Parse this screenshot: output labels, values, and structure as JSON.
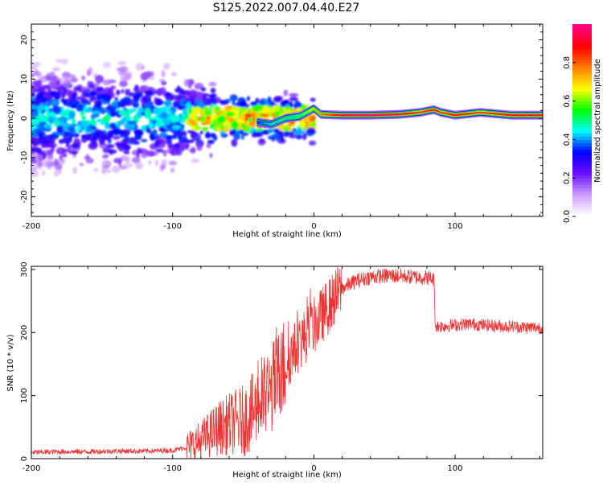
{
  "page": {
    "title": "S125.2022.007.04.40.E27"
  },
  "chart_data": [
    {
      "type": "heatmap",
      "xlabel": "Height of straight line (km)",
      "ylabel": "Frequency (Hz)",
      "xlim": [
        -200,
        162
      ],
      "ylim": [
        -25,
        24
      ],
      "xticks": [
        -200,
        -100,
        0,
        100
      ],
      "yticks": [
        -20,
        -10,
        0,
        10,
        20
      ],
      "colorbar": {
        "label": "Normalized spectral amplitude",
        "range": [
          0,
          1
        ],
        "ticks": [
          "0.0",
          "0.2",
          "0.4",
          "0.6",
          "0.8"
        ],
        "colors": [
          "#ffffff",
          "#cc99ff",
          "#6a0dff",
          "#0000ff",
          "#00ffff",
          "#00ff00",
          "#ffff00",
          "#ff8000",
          "#ff0000",
          "#ff0080"
        ]
      },
      "ridge": [
        {
          "x": -40,
          "y": -1.0,
          "amp": 0.35
        },
        {
          "x": -30,
          "y": -1.5,
          "amp": 0.45
        },
        {
          "x": -20,
          "y": 0.0,
          "amp": 0.5
        },
        {
          "x": -10,
          "y": 0.5,
          "amp": 0.55
        },
        {
          "x": 0,
          "y": 2.5,
          "amp": 0.7
        },
        {
          "x": 5,
          "y": 1.0,
          "amp": 0.8
        },
        {
          "x": 20,
          "y": 0.8,
          "amp": 0.95
        },
        {
          "x": 40,
          "y": 0.8,
          "amp": 0.98
        },
        {
          "x": 60,
          "y": 1.0,
          "amp": 0.95
        },
        {
          "x": 75,
          "y": 1.5,
          "amp": 0.85
        },
        {
          "x": 85,
          "y": 2.2,
          "amp": 0.9
        },
        {
          "x": 90,
          "y": 1.5,
          "amp": 0.85
        },
        {
          "x": 100,
          "y": 0.8,
          "amp": 0.9
        },
        {
          "x": 118,
          "y": 1.5,
          "amp": 0.85
        },
        {
          "x": 140,
          "y": 0.8,
          "amp": 0.9
        },
        {
          "x": 162,
          "y": 0.8,
          "amp": 0.9
        }
      ]
    },
    {
      "type": "line",
      "xlabel": "Height of straight line (km)",
      "ylabel": "SNR (10 * v/v)",
      "xlim": [
        -200,
        162
      ],
      "ylim": [
        0,
        305
      ],
      "xticks": [
        -200,
        -100,
        0,
        100
      ],
      "yticks": [
        0,
        100,
        200,
        300
      ],
      "color": "#ee3333",
      "x": [
        -200,
        -180,
        -160,
        -140,
        -120,
        -100,
        -90,
        -80,
        -70,
        -60,
        -50,
        -40,
        -30,
        -20,
        -10,
        0,
        10,
        20,
        30,
        40,
        50,
        60,
        70,
        80,
        85,
        86,
        90,
        100,
        110,
        120,
        130,
        140,
        150,
        162
      ],
      "y": [
        10,
        11,
        11,
        12,
        12,
        13,
        18,
        28,
        45,
        55,
        60,
        80,
        110,
        150,
        185,
        210,
        240,
        270,
        282,
        288,
        290,
        290,
        288,
        287,
        285,
        210,
        210,
        212,
        214,
        212,
        210,
        210,
        208,
        208
      ]
    }
  ]
}
